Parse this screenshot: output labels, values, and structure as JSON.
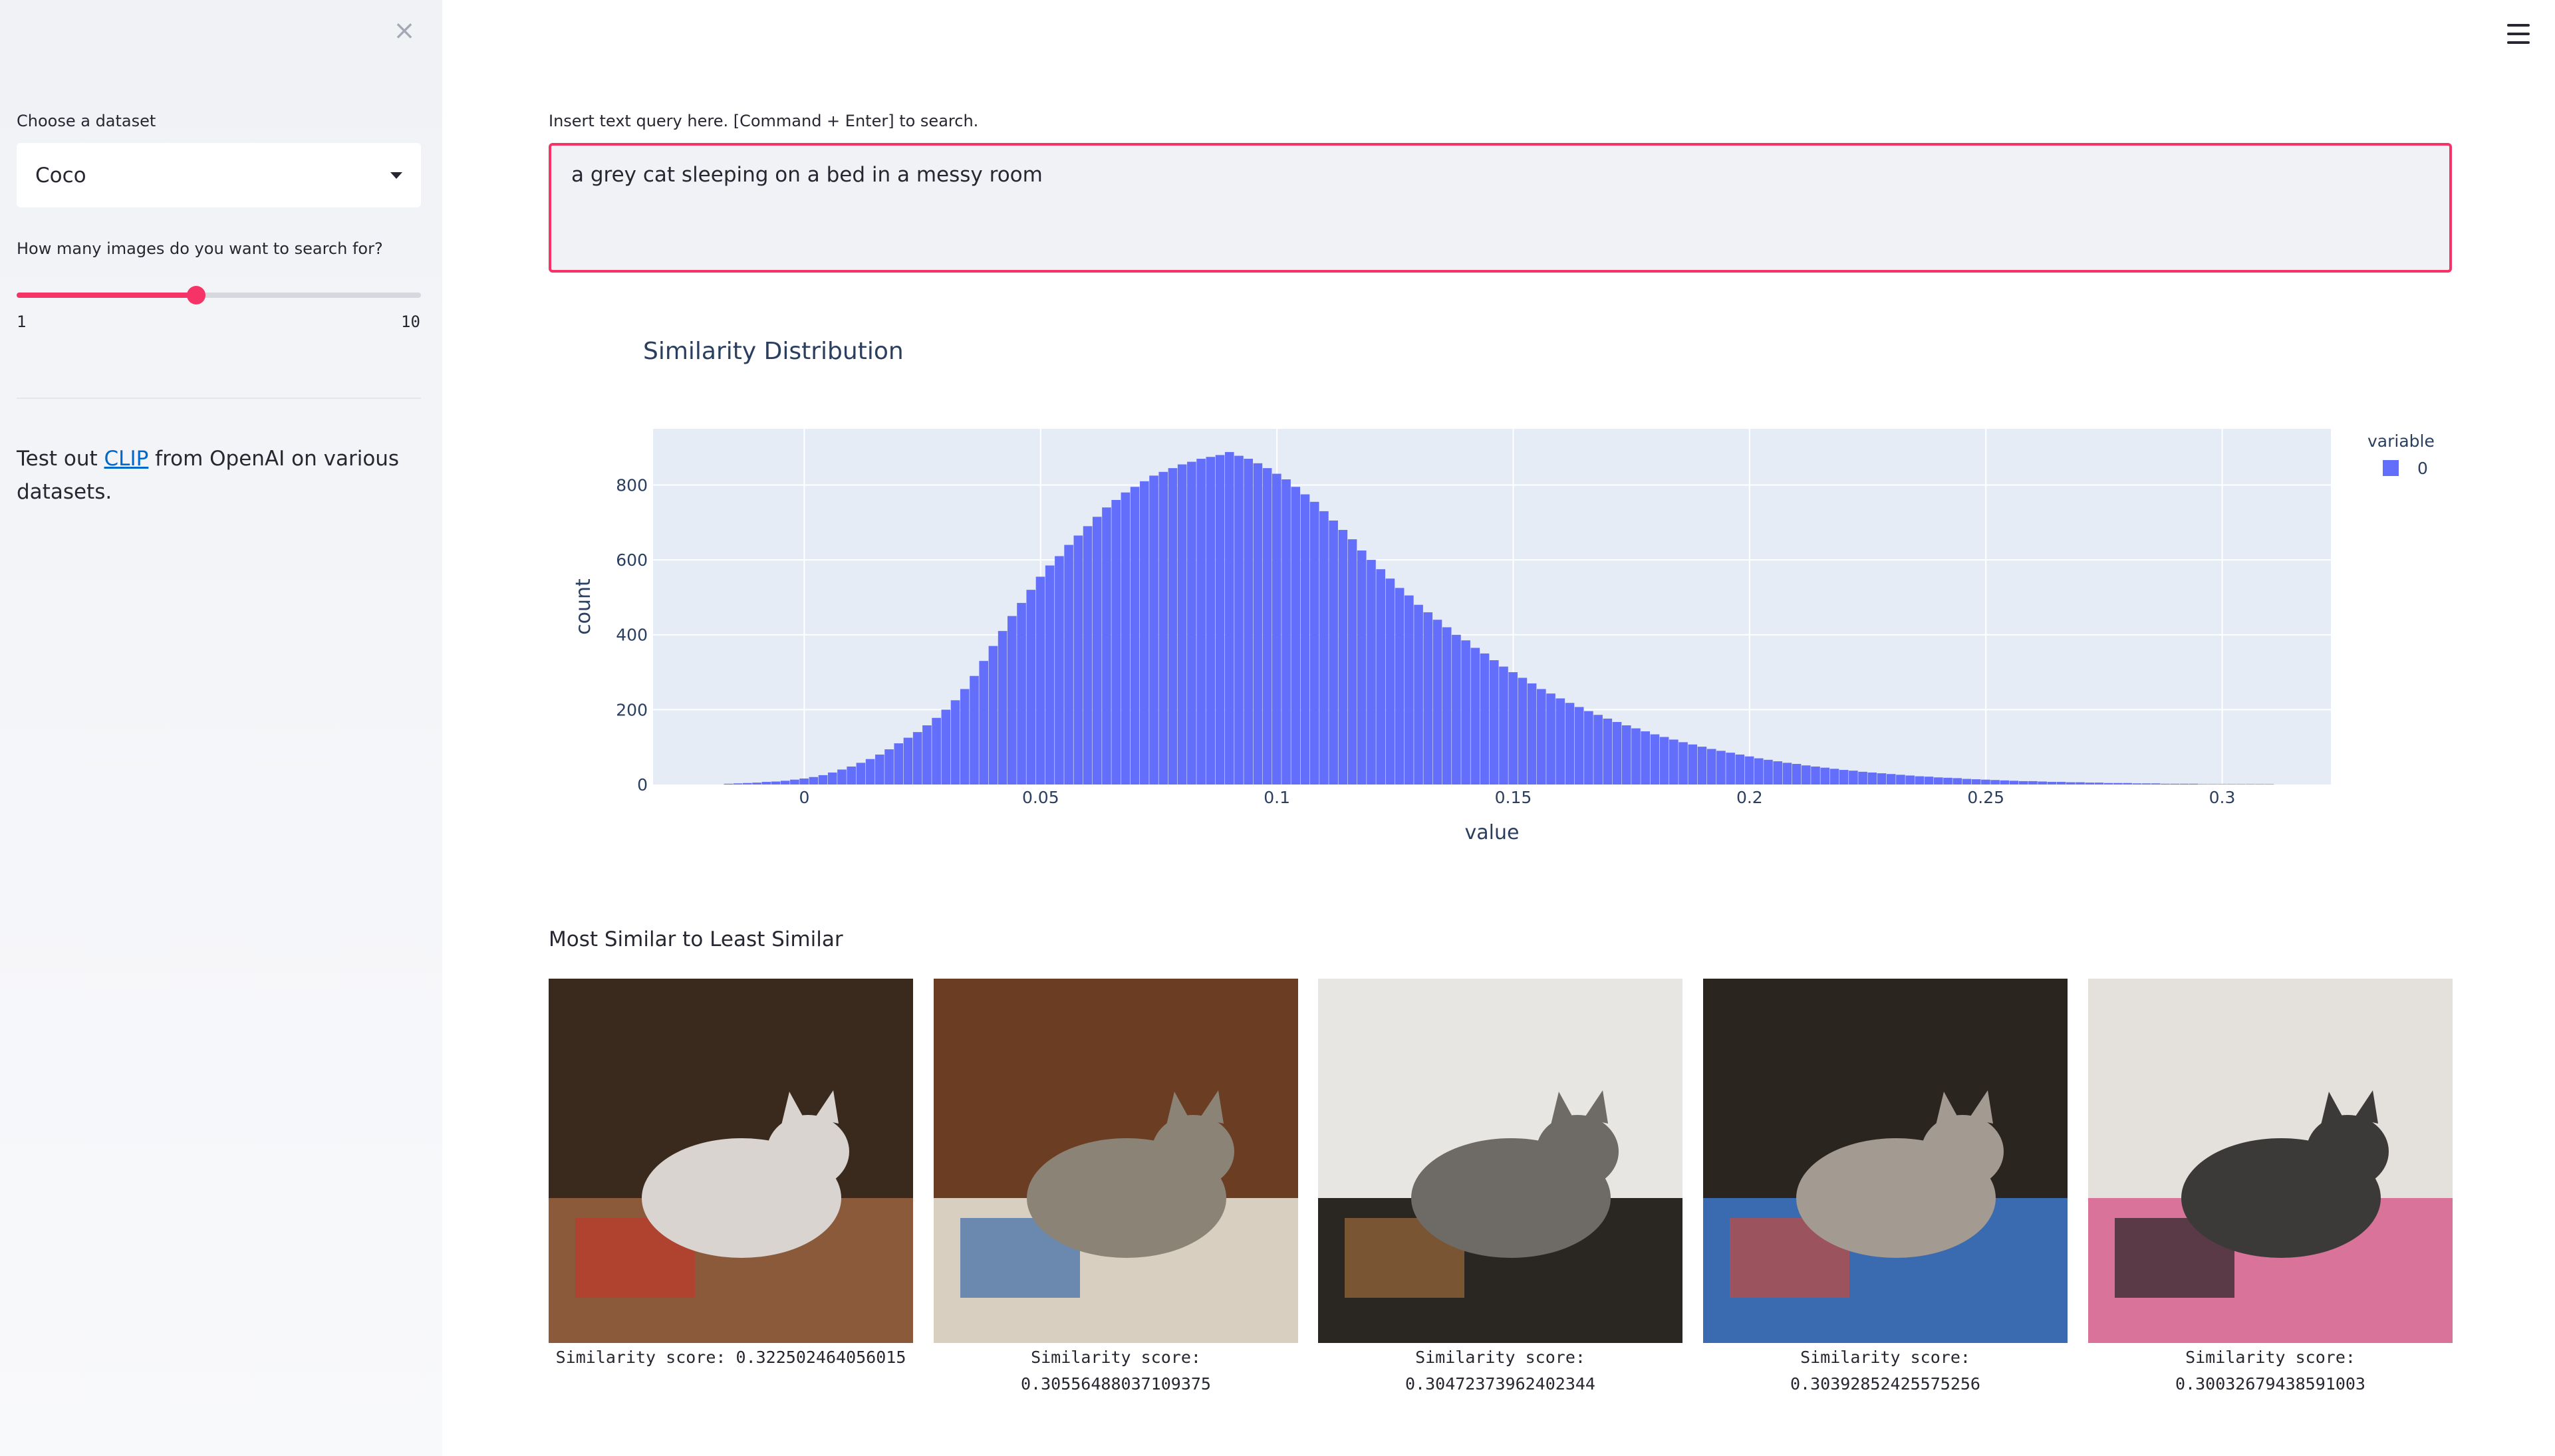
{
  "sidebar": {
    "close_icon": "close-icon",
    "dataset_label": "Choose a dataset",
    "dataset_value": "Coco",
    "count_label": "How many images do you want to search for?",
    "slider": {
      "min": "1",
      "max": "10",
      "value": 5
    },
    "info_before": "Test out ",
    "info_link": "CLIP",
    "info_after": " from OpenAI on various datasets."
  },
  "header": {
    "menu_icon": "hamburger-icon"
  },
  "query": {
    "label": "Insert text query here. [Command + Enter] to search.",
    "value": "a grey cat sleeping on a bed in a messy room",
    "accent": "#f63366"
  },
  "chart_data": {
    "type": "bar",
    "title": "Similarity Distribution",
    "xlabel": "value",
    "ylabel": "count",
    "legend_title": "variable",
    "legend_placement": "top-right",
    "series": [
      {
        "name": "0",
        "color": "#636efa",
        "bin_width": 0.002,
        "x": [
          -0.016,
          -0.014,
          -0.012,
          -0.01,
          -0.008,
          -0.006,
          -0.004,
          -0.002,
          0,
          0.002,
          0.004,
          0.006,
          0.008,
          0.01,
          0.012,
          0.014,
          0.016,
          0.018,
          0.02,
          0.022,
          0.024,
          0.026,
          0.028,
          0.03,
          0.032,
          0.034,
          0.036,
          0.038,
          0.04,
          0.042,
          0.044,
          0.046,
          0.048,
          0.05,
          0.052,
          0.054,
          0.056,
          0.058,
          0.06,
          0.062,
          0.064,
          0.066,
          0.068,
          0.07,
          0.072,
          0.074,
          0.076,
          0.078,
          0.08,
          0.082,
          0.084,
          0.086,
          0.088,
          0.09,
          0.092,
          0.094,
          0.096,
          0.098,
          0.1,
          0.102,
          0.104,
          0.106,
          0.108,
          0.11,
          0.112,
          0.114,
          0.116,
          0.118,
          0.12,
          0.122,
          0.124,
          0.126,
          0.128,
          0.13,
          0.132,
          0.134,
          0.136,
          0.138,
          0.14,
          0.142,
          0.144,
          0.146,
          0.148,
          0.15,
          0.152,
          0.154,
          0.156,
          0.158,
          0.16,
          0.162,
          0.164,
          0.166,
          0.168,
          0.17,
          0.172,
          0.174,
          0.176,
          0.178,
          0.18,
          0.182,
          0.184,
          0.186,
          0.188,
          0.19,
          0.192,
          0.194,
          0.196,
          0.198,
          0.2,
          0.202,
          0.204,
          0.206,
          0.208,
          0.21,
          0.212,
          0.214,
          0.216,
          0.218,
          0.22,
          0.222,
          0.224,
          0.226,
          0.228,
          0.23,
          0.232,
          0.234,
          0.236,
          0.238,
          0.24,
          0.242,
          0.244,
          0.246,
          0.248,
          0.25,
          0.252,
          0.254,
          0.256,
          0.258,
          0.26,
          0.262,
          0.264,
          0.266,
          0.268,
          0.27,
          0.272,
          0.274,
          0.276,
          0.278,
          0.28,
          0.282,
          0.284,
          0.286,
          0.288,
          0.29,
          0.292,
          0.294,
          0.296,
          0.298,
          0.3,
          0.302,
          0.304,
          0.306,
          0.308,
          0.31
        ],
        "y": [
          2,
          3,
          4,
          5,
          7,
          8,
          10,
          13,
          16,
          20,
          25,
          32,
          40,
          48,
          58,
          68,
          80,
          94,
          110,
          125,
          140,
          158,
          178,
          200,
          225,
          255,
          290,
          330,
          370,
          410,
          450,
          485,
          520,
          555,
          585,
          610,
          640,
          665,
          690,
          715,
          740,
          760,
          780,
          795,
          810,
          825,
          835,
          845,
          855,
          862,
          870,
          875,
          880,
          888,
          878,
          870,
          858,
          845,
          830,
          815,
          795,
          775,
          755,
          730,
          705,
          680,
          655,
          625,
          600,
          575,
          550,
          525,
          505,
          480,
          460,
          440,
          420,
          400,
          385,
          365,
          350,
          332,
          315,
          300,
          285,
          270,
          255,
          243,
          230,
          218,
          207,
          196,
          186,
          176,
          167,
          158,
          150,
          142,
          134,
          127,
          120,
          113,
          107,
          101,
          95,
          90,
          85,
          80,
          75,
          70,
          66,
          62,
          58,
          55,
          51,
          48,
          45,
          42,
          39,
          37,
          34,
          32,
          30,
          28,
          26,
          24,
          22,
          21,
          19,
          18,
          17,
          15,
          14,
          13,
          12,
          11,
          10,
          9,
          9,
          8,
          7,
          7,
          6,
          6,
          5,
          5,
          4,
          4,
          4,
          3,
          3,
          3,
          2,
          2,
          2,
          2,
          1,
          1,
          1,
          1,
          1,
          1,
          1,
          1
        ],
        "peak": 900
      }
    ],
    "xlim": [
      -0.032,
      0.323
    ],
    "ylim": [
      0,
      950
    ],
    "xticks": [
      0,
      0.05,
      0.1,
      0.15,
      0.2,
      0.25,
      0.3
    ],
    "xtick_labels": [
      "0",
      "0.05",
      "0.1",
      "0.15",
      "0.2",
      "0.25",
      "0.3"
    ],
    "yticks": [
      0,
      200,
      400,
      600,
      800
    ],
    "ytick_labels": [
      "0",
      "200",
      "400",
      "600",
      "800"
    ],
    "grid": true
  },
  "results": {
    "title": "Most Similar to Least Similar",
    "items": [
      {
        "caption": "Similarity score: 0.322502464056015",
        "icon": "cat-image"
      },
      {
        "caption": "Similarity score: 0.30556488037109375",
        "icon": "cat-image"
      },
      {
        "caption": "Similarity score: 0.30472373962402344",
        "icon": "cat-image"
      },
      {
        "caption": "Similarity score: 0.30392852425575256",
        "icon": "cat-image"
      },
      {
        "caption": "Similarity score: 0.30032679438591003",
        "icon": "cat-image"
      }
    ]
  }
}
